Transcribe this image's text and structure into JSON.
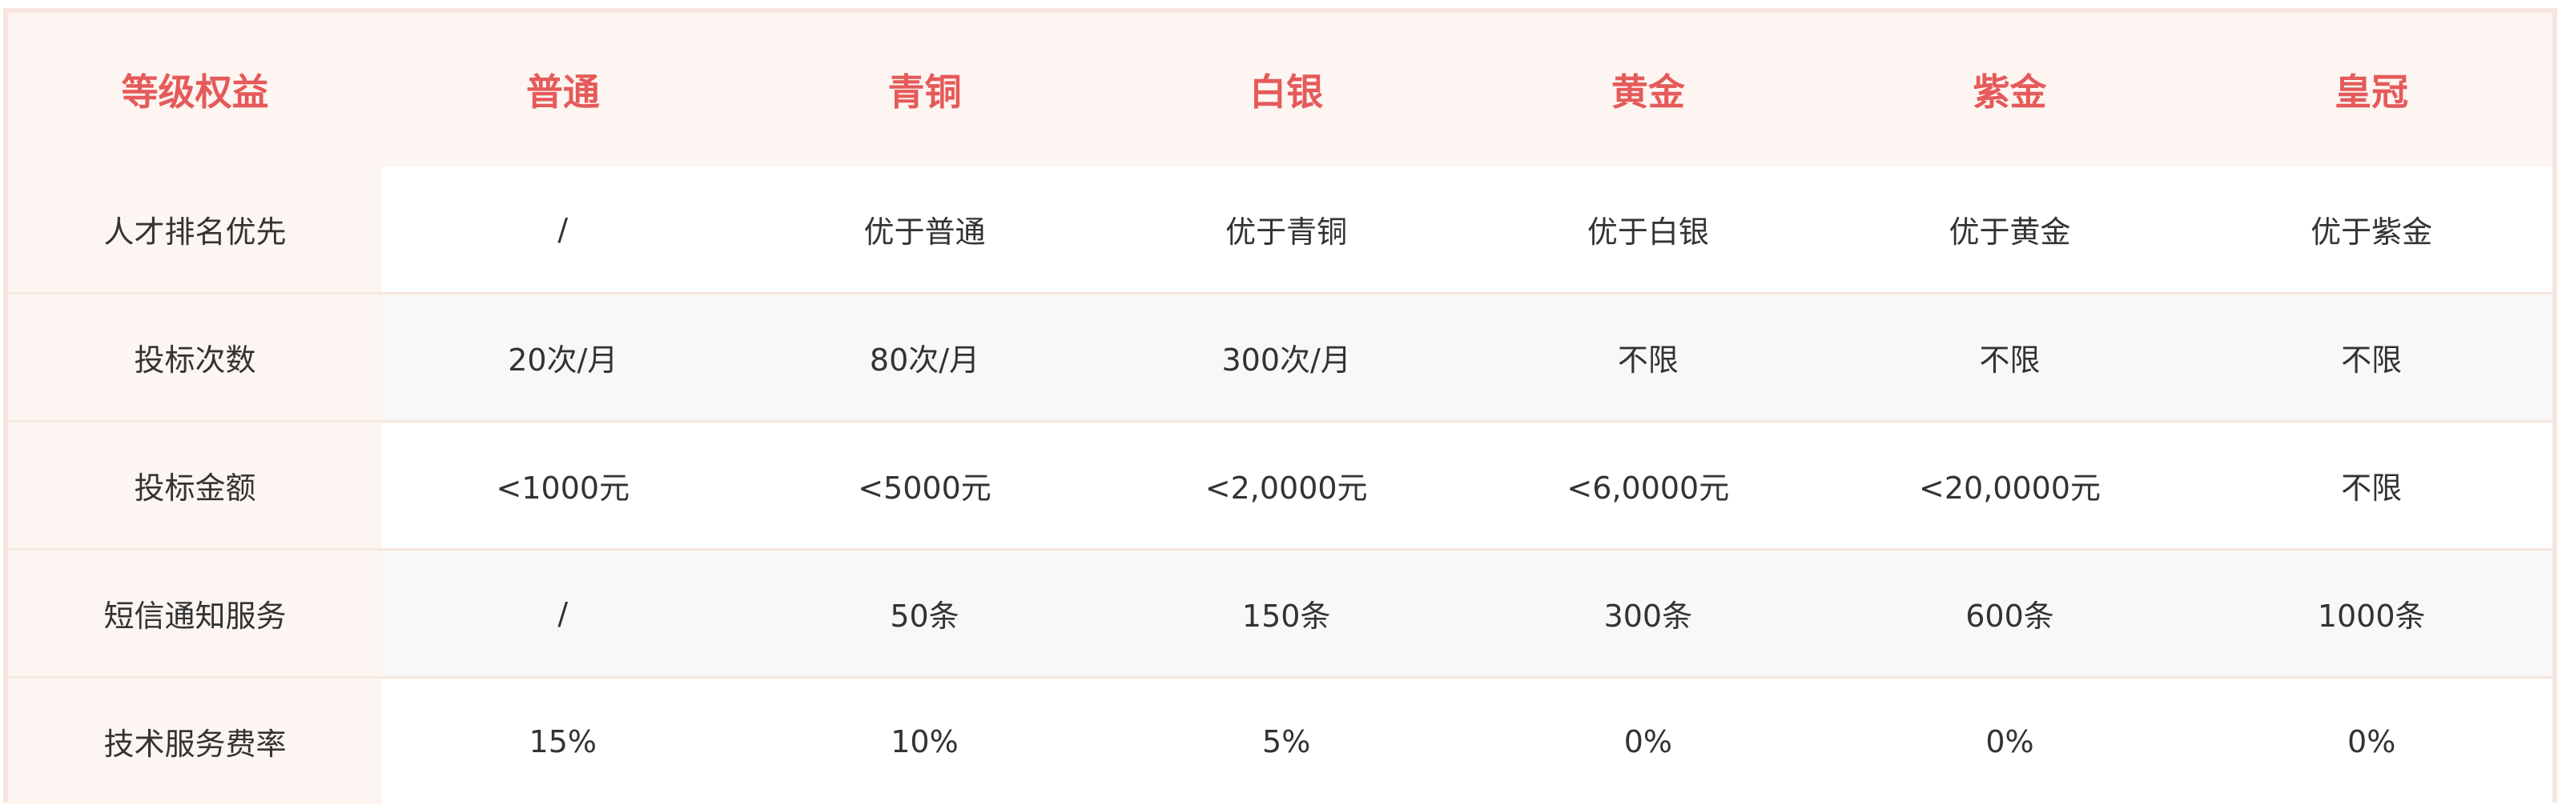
{
  "header": [
    "等级权益",
    "普通",
    "青铜",
    "白银",
    "黄金",
    "紫金",
    "皇冠"
  ],
  "rows": [
    {
      "label": "人才排名优先",
      "values": [
        "/",
        "优于普通",
        "优于青铜",
        "优于白银",
        "优于黄金",
        "优于紫金"
      ]
    },
    {
      "label": "投标次数",
      "values": [
        "20次/月",
        "80次/月",
        "300次/月",
        "不限",
        "不限",
        "不限"
      ]
    },
    {
      "label": "投标金额",
      "values": [
        "<1000元",
        "<5000元",
        "<2,0000元",
        "<6,0000元",
        "<20,0000元",
        "不限"
      ]
    },
    {
      "label": "短信通知服务",
      "values": [
        "/",
        "50条",
        "150条",
        "300条",
        "600条",
        "1000条"
      ]
    },
    {
      "label": "技术服务费率",
      "values": [
        "15%",
        "10%",
        "5%",
        "0%",
        "0%",
        "0%"
      ]
    }
  ],
  "colors": {
    "header_text": "#e55a5a",
    "border": "#f7e6df",
    "header_bg": "#fdf5f1",
    "alt_row_bg": "#f8f8f8",
    "text": "#333333"
  }
}
